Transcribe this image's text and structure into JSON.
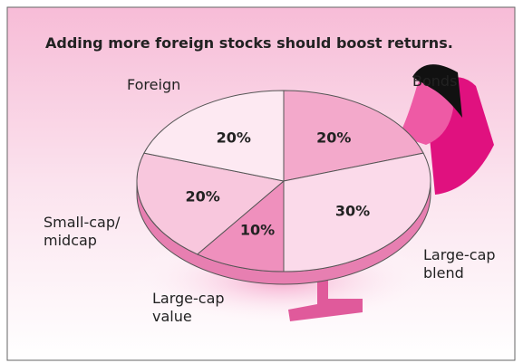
{
  "chart_data": {
    "type": "pie",
    "title": "Adding more foreign stocks should boost returns.",
    "categories": [
      "Bonds",
      "Large-cap\nblend",
      "Large-cap\nvalue",
      "Small-cap/\nmidcap",
      "Foreign"
    ],
    "values": [
      20,
      30,
      10,
      20,
      20
    ],
    "value_labels": [
      "20%",
      "30%",
      "10%",
      "20%",
      "20%"
    ],
    "colors": [
      "#f3a9cb",
      "#fbdaea",
      "#ef90bd",
      "#f8c7dd",
      "#fde9f2"
    ]
  }
}
